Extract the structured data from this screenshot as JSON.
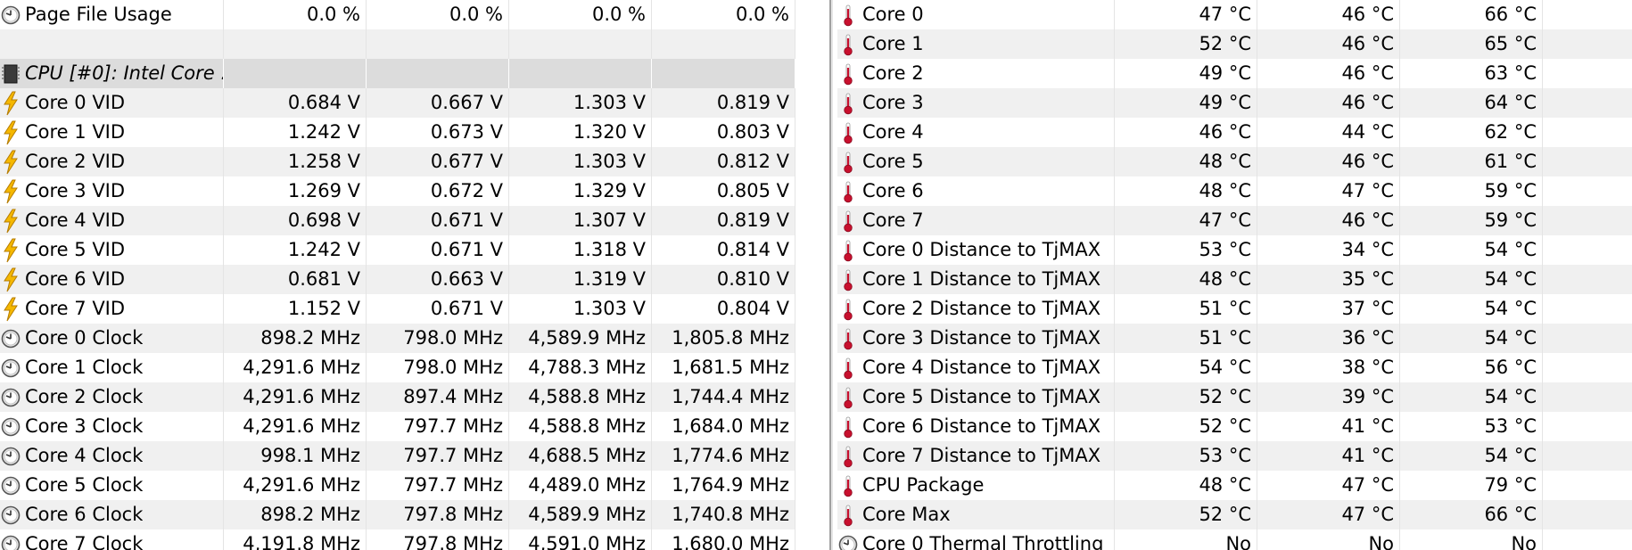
{
  "left": {
    "rows": [
      {
        "label": "Page File Usage",
        "icon": "clock-icon",
        "values": [
          "0.0 %",
          "0.0 %",
          "0.0 %",
          "0.0 %"
        ]
      },
      {
        "label": "",
        "icon": "none",
        "values": [
          "",
          "",
          "",
          ""
        ]
      },
      {
        "label": "CPU [#0]: Intel Core ...",
        "icon": "chip-icon",
        "group": true,
        "values": [
          "",
          "",
          "",
          ""
        ]
      },
      {
        "label": "Core 0 VID",
        "icon": "lightning-icon",
        "values": [
          "0.684 V",
          "0.667 V",
          "1.303 V",
          "0.819 V"
        ]
      },
      {
        "label": "Core 1 VID",
        "icon": "lightning-icon",
        "values": [
          "1.242 V",
          "0.673 V",
          "1.320 V",
          "0.803 V"
        ]
      },
      {
        "label": "Core 2 VID",
        "icon": "lightning-icon",
        "values": [
          "1.258 V",
          "0.677 V",
          "1.303 V",
          "0.812 V"
        ]
      },
      {
        "label": "Core 3 VID",
        "icon": "lightning-icon",
        "values": [
          "1.269 V",
          "0.672 V",
          "1.329 V",
          "0.805 V"
        ]
      },
      {
        "label": "Core 4 VID",
        "icon": "lightning-icon",
        "values": [
          "0.698 V",
          "0.671 V",
          "1.307 V",
          "0.819 V"
        ]
      },
      {
        "label": "Core 5 VID",
        "icon": "lightning-icon",
        "values": [
          "1.242 V",
          "0.671 V",
          "1.318 V",
          "0.814 V"
        ]
      },
      {
        "label": "Core 6 VID",
        "icon": "lightning-icon",
        "values": [
          "0.681 V",
          "0.663 V",
          "1.319 V",
          "0.810 V"
        ]
      },
      {
        "label": "Core 7 VID",
        "icon": "lightning-icon",
        "values": [
          "1.152 V",
          "0.671 V",
          "1.303 V",
          "0.804 V"
        ]
      },
      {
        "label": "Core 0 Clock",
        "icon": "clock-icon",
        "values": [
          "898.2 MHz",
          "798.0 MHz",
          "4,589.9 MHz",
          "1,805.8 MHz"
        ]
      },
      {
        "label": "Core 1 Clock",
        "icon": "clock-icon",
        "values": [
          "4,291.6 MHz",
          "798.0 MHz",
          "4,788.3 MHz",
          "1,681.5 MHz"
        ]
      },
      {
        "label": "Core 2 Clock",
        "icon": "clock-icon",
        "values": [
          "4,291.6 MHz",
          "897.4 MHz",
          "4,588.8 MHz",
          "1,744.4 MHz"
        ]
      },
      {
        "label": "Core 3 Clock",
        "icon": "clock-icon",
        "values": [
          "4,291.6 MHz",
          "797.7 MHz",
          "4,588.8 MHz",
          "1,684.0 MHz"
        ]
      },
      {
        "label": "Core 4 Clock",
        "icon": "clock-icon",
        "values": [
          "998.1 MHz",
          "797.7 MHz",
          "4,688.5 MHz",
          "1,774.6 MHz"
        ]
      },
      {
        "label": "Core 5 Clock",
        "icon": "clock-icon",
        "values": [
          "4,291.6 MHz",
          "797.7 MHz",
          "4,489.0 MHz",
          "1,764.9 MHz"
        ]
      },
      {
        "label": "Core 6 Clock",
        "icon": "clock-icon",
        "values": [
          "898.2 MHz",
          "797.8 MHz",
          "4,589.9 MHz",
          "1,740.8 MHz"
        ]
      },
      {
        "label": "Core 7 Clock",
        "icon": "clock-icon",
        "values": [
          "4,191.8 MHz",
          "797.8 MHz",
          "4,591.0 MHz",
          "1,680.0 MHz"
        ]
      }
    ]
  },
  "right": {
    "rows": [
      {
        "label": "Core 0",
        "icon": "thermometer-icon",
        "values": [
          "47 °C",
          "46 °C",
          "66 °C"
        ]
      },
      {
        "label": "Core 1",
        "icon": "thermometer-icon",
        "values": [
          "52 °C",
          "46 °C",
          "65 °C"
        ]
      },
      {
        "label": "Core 2",
        "icon": "thermometer-icon",
        "values": [
          "49 °C",
          "46 °C",
          "63 °C"
        ]
      },
      {
        "label": "Core 3",
        "icon": "thermometer-icon",
        "values": [
          "49 °C",
          "46 °C",
          "64 °C"
        ]
      },
      {
        "label": "Core 4",
        "icon": "thermometer-icon",
        "values": [
          "46 °C",
          "44 °C",
          "62 °C"
        ]
      },
      {
        "label": "Core 5",
        "icon": "thermometer-icon",
        "values": [
          "48 °C",
          "46 °C",
          "61 °C"
        ]
      },
      {
        "label": "Core 6",
        "icon": "thermometer-icon",
        "values": [
          "48 °C",
          "47 °C",
          "59 °C"
        ]
      },
      {
        "label": "Core 7",
        "icon": "thermometer-icon",
        "values": [
          "47 °C",
          "46 °C",
          "59 °C"
        ]
      },
      {
        "label": "Core 0 Distance to TjMAX",
        "icon": "thermometer-icon",
        "values": [
          "53 °C",
          "34 °C",
          "54 °C"
        ]
      },
      {
        "label": "Core 1 Distance to TjMAX",
        "icon": "thermometer-icon",
        "values": [
          "48 °C",
          "35 °C",
          "54 °C"
        ]
      },
      {
        "label": "Core 2 Distance to TjMAX",
        "icon": "thermometer-icon",
        "values": [
          "51 °C",
          "37 °C",
          "54 °C"
        ]
      },
      {
        "label": "Core 3 Distance to TjMAX",
        "icon": "thermometer-icon",
        "values": [
          "51 °C",
          "36 °C",
          "54 °C"
        ]
      },
      {
        "label": "Core 4 Distance to TjMAX",
        "icon": "thermometer-icon",
        "values": [
          "54 °C",
          "38 °C",
          "56 °C"
        ]
      },
      {
        "label": "Core 5 Distance to TjMAX",
        "icon": "thermometer-icon",
        "values": [
          "52 °C",
          "39 °C",
          "54 °C"
        ]
      },
      {
        "label": "Core 6 Distance to TjMAX",
        "icon": "thermometer-icon",
        "values": [
          "52 °C",
          "41 °C",
          "53 °C"
        ]
      },
      {
        "label": "Core 7 Distance to TjMAX",
        "icon": "thermometer-icon",
        "values": [
          "53 °C",
          "41 °C",
          "54 °C"
        ]
      },
      {
        "label": "CPU Package",
        "icon": "thermometer-icon",
        "values": [
          "48 °C",
          "47 °C",
          "79 °C"
        ]
      },
      {
        "label": "Core Max",
        "icon": "thermometer-icon",
        "values": [
          "52 °C",
          "47 °C",
          "66 °C"
        ]
      },
      {
        "label": "Core 0 Thermal Throttling",
        "icon": "clock-icon",
        "values": [
          "No",
          "No",
          "No"
        ]
      }
    ]
  },
  "colors": {
    "row_alt": "#f0f0f0",
    "group_row": "#dcdcdc",
    "thermometer_red": "#c8102e",
    "lightning_yellow": "#f5b800"
  }
}
